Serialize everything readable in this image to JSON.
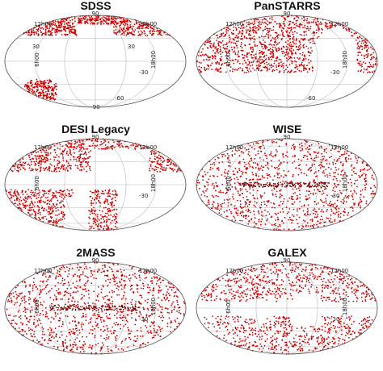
{
  "chart_data": [
    {
      "type": "scatter",
      "title": "SDSS",
      "coverage": "north+south-cap",
      "grid_labels": {
        "top": "90",
        "ra_left": "12h00",
        "ra_right": "12h00",
        "ra_mid_left": "6h00",
        "ra_mid_right": "18h00",
        "dec_pos": "30",
        "dec_pos_r": "30",
        "dec_neg_r": "-30",
        "dec_neg_r2": "-60",
        "bottom": "-90"
      }
    },
    {
      "type": "scatter",
      "title": "PanSTARRS",
      "coverage": "dec>-30",
      "grid_labels": {
        "top": "90",
        "ra_left": "12h00",
        "ra_right": "12h00",
        "ra_mid_left": "6h00",
        "ra_mid_right": "18h00",
        "dec_neg_r": "-30",
        "dec_neg_r2": "-60"
      }
    },
    {
      "type": "scatter",
      "title": "DESI Legacy",
      "coverage": "north+south-strips",
      "grid_labels": {
        "top": "90",
        "ra_left": "12h00",
        "ra_right": "12h00",
        "ra_mid_left": "6h00",
        "ra_mid_right": "18h00",
        "dec_neg_r": "-30"
      }
    },
    {
      "type": "scatter",
      "title": "WISE",
      "coverage": "all-sky",
      "grid_labels": {
        "top": "90",
        "ra_left": "12h00",
        "ra_right": "12h00",
        "ra_mid_left": "6h00",
        "ra_mid_right": "18h00",
        "dec_neg_r": "-30"
      }
    },
    {
      "type": "scatter",
      "title": "2MASS",
      "coverage": "all-sky",
      "grid_labels": {
        "top": "90",
        "ra_left": "12h00",
        "ra_right": "12h00",
        "ra_mid_left": "6h00",
        "ra_mid_right": "18h00",
        "dec_neg_r": "-30"
      }
    },
    {
      "type": "scatter",
      "title": "GALEX",
      "coverage": "galex",
      "grid_labels": {
        "top": "90",
        "ra_left": "12h00",
        "ra_right": "12h00",
        "ra_mid_left": "6h00",
        "ra_mid_right": "18h00",
        "dec_neg_r": "-30"
      }
    }
  ],
  "colors": {
    "points": "#cc0000",
    "dense_points": "#5a0000",
    "grid": "#b8b8b8",
    "outline": "#555555"
  }
}
